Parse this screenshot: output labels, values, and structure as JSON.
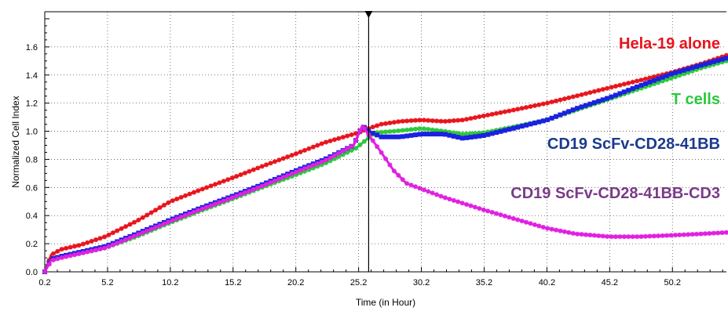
{
  "chart_data": {
    "type": "line",
    "xlabel": "Time (in Hour)",
    "ylabel": "Normalized Cell Index",
    "xlim": [
      0.2,
      54.5
    ],
    "ylim": [
      0.0,
      1.85
    ],
    "x_ticks": [
      0.2,
      5.2,
      10.2,
      15.2,
      20.2,
      25.2,
      30.2,
      35.2,
      40.2,
      45.2,
      50.2
    ],
    "x_tick_labels": [
      "0.2",
      "5.2",
      "10.2",
      "15.2",
      "20.2",
      "25.2",
      "30.2",
      "35.2",
      "40.2",
      "45.2",
      "50.2"
    ],
    "y_ticks": [
      0.0,
      0.2,
      0.4,
      0.6,
      0.8,
      1.0,
      1.2,
      1.4,
      1.6
    ],
    "y_tick_labels": [
      "0.0",
      "0.2",
      "0.4",
      "0.6",
      "0.8",
      "1.0",
      "1.2",
      "1.4",
      "1.6"
    ],
    "grid": true,
    "marker_x": 26.0,
    "series": [
      {
        "name": "Hela-19 alone",
        "color": "#e8141c",
        "x": [
          0.2,
          0.7,
          1.5,
          3.0,
          5.0,
          7.5,
          10.2,
          12.5,
          15.2,
          17.5,
          20.2,
          22.5,
          25.2,
          26.0,
          27.0,
          28.5,
          30.2,
          32.0,
          33.5,
          35.2,
          37.5,
          40.2,
          42.5,
          45.2,
          47.5,
          50.2,
          52.5,
          54.5
        ],
        "y": [
          0.0,
          0.12,
          0.16,
          0.19,
          0.25,
          0.36,
          0.5,
          0.58,
          0.67,
          0.75,
          0.84,
          0.92,
          0.99,
          1.02,
          1.05,
          1.07,
          1.08,
          1.07,
          1.08,
          1.11,
          1.15,
          1.2,
          1.25,
          1.31,
          1.36,
          1.42,
          1.48,
          1.54
        ]
      },
      {
        "name": "T cells",
        "color": "#2cc83c",
        "x": [
          0.2,
          0.7,
          1.5,
          3.0,
          5.0,
          7.5,
          10.2,
          12.5,
          15.2,
          17.5,
          20.2,
          22.5,
          25.0,
          26.5,
          28.0,
          30.2,
          32.0,
          33.5,
          35.2,
          37.5,
          40.2,
          42.5,
          45.2,
          47.5,
          50.2,
          52.5,
          54.5
        ],
        "y": [
          0.0,
          0.09,
          0.11,
          0.13,
          0.17,
          0.25,
          0.35,
          0.43,
          0.52,
          0.6,
          0.69,
          0.77,
          0.88,
          0.99,
          1.0,
          1.02,
          1.0,
          0.98,
          0.99,
          1.03,
          1.08,
          1.15,
          1.23,
          1.3,
          1.38,
          1.45,
          1.5
        ]
      },
      {
        "name": "CD19 ScFv-CD28-41BB",
        "color": "#1a22e0",
        "x": [
          0.2,
          0.7,
          1.5,
          3.0,
          5.0,
          7.5,
          10.2,
          12.5,
          15.2,
          17.5,
          20.2,
          22.5,
          24.8,
          25.5,
          26.0,
          27.0,
          28.5,
          30.2,
          32.0,
          33.5,
          35.2,
          37.5,
          40.2,
          42.5,
          45.2,
          47.5,
          50.2,
          52.5,
          54.5
        ],
        "y": [
          0.0,
          0.09,
          0.11,
          0.14,
          0.18,
          0.27,
          0.37,
          0.45,
          0.54,
          0.62,
          0.72,
          0.8,
          0.9,
          1.04,
          1.0,
          0.96,
          0.96,
          0.98,
          0.98,
          0.95,
          0.97,
          1.02,
          1.08,
          1.16,
          1.24,
          1.32,
          1.41,
          1.47,
          1.52
        ]
      },
      {
        "name": "CD19 ScFv-CD28-41BB-CD3",
        "color": "#e020e0",
        "x": [
          0.2,
          0.7,
          1.5,
          3.0,
          5.0,
          7.5,
          10.2,
          12.5,
          15.2,
          17.5,
          20.2,
          22.5,
          24.8,
          25.5,
          26.2,
          27.0,
          28.0,
          29.0,
          30.2,
          32.0,
          35.2,
          37.5,
          40.2,
          42.5,
          45.2,
          47.5,
          50.2,
          52.5,
          54.5
        ],
        "y": [
          0.0,
          0.08,
          0.1,
          0.13,
          0.17,
          0.26,
          0.36,
          0.44,
          0.53,
          0.61,
          0.71,
          0.79,
          0.9,
          1.04,
          0.95,
          0.85,
          0.72,
          0.63,
          0.59,
          0.53,
          0.44,
          0.38,
          0.31,
          0.27,
          0.25,
          0.25,
          0.26,
          0.27,
          0.28
        ]
      }
    ],
    "labels": [
      {
        "text": "Hela-19 alone",
        "color": "#e8141c",
        "series": 0
      },
      {
        "text": "T cells",
        "color": "#2cc83c",
        "series": 1
      },
      {
        "text": "CD19 ScFv-CD28-41BB",
        "color": "#1a3a8c",
        "series": 2
      },
      {
        "text": "CD19 ScFv-CD28-41BB-CD3",
        "color": "#7a3a88",
        "series": 3
      }
    ]
  }
}
